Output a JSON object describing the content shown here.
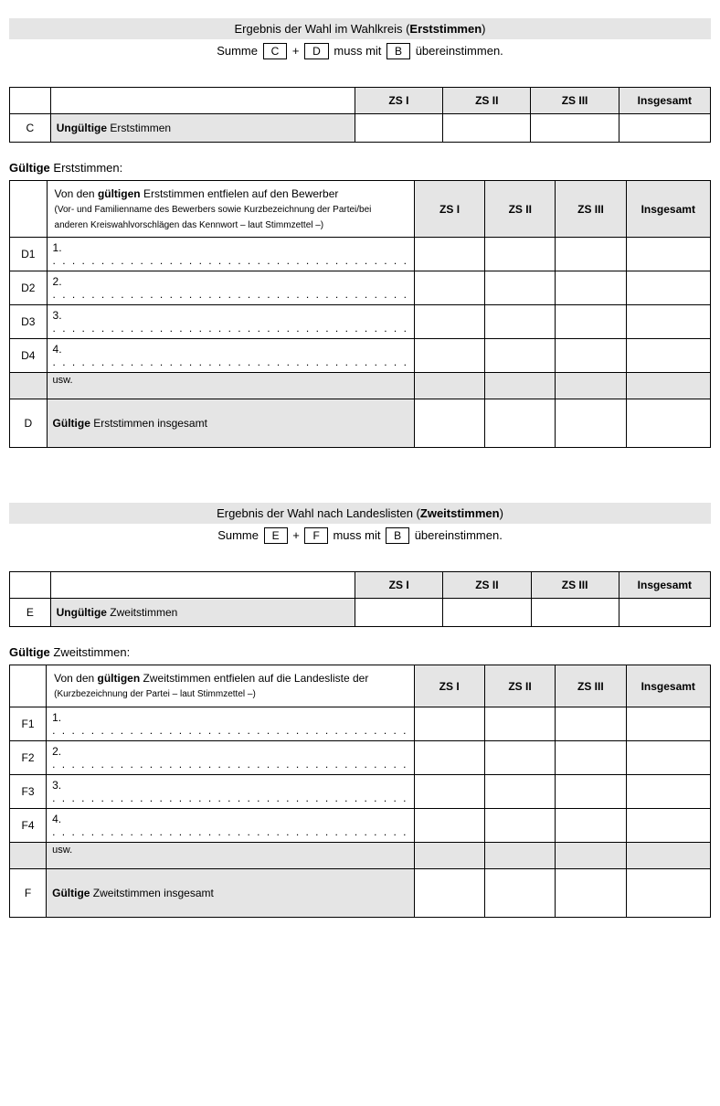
{
  "erststimmen": {
    "header_prefix": "Ergebnis der Wahl im Wahlkreis (",
    "header_bold": "Erststimmen",
    "header_suffix": ")",
    "formula_summe": "Summe",
    "formula_box1": "C",
    "formula_plus": "+",
    "formula_box2": "D",
    "formula_mid": "muss mit",
    "formula_box3": "B",
    "formula_end": "übereinstimmen.",
    "cols": {
      "zs1": "ZS I",
      "zs2": "ZS II",
      "zs3": "ZS III",
      "total": "Insgesamt"
    },
    "invalid": {
      "label": "C",
      "text_bold": "Ungültige",
      "text_rest": " Erststimmen"
    },
    "valid_heading_bold": "Gültige",
    "valid_heading_rest": " Erststimmen:",
    "desc_line1a": "Von den ",
    "desc_line1b": "gültigen",
    "desc_line1c": " Erststimmen entfielen auf den Bewerber",
    "desc_small": "(Vor- und Familienname des Bewerbers sowie Kurzbe­zeichnung der Partei/bei anderen Kreiswahlvorschlägen das Kennwort – laut Stimmzettel –)",
    "rows": [
      {
        "label": "D1",
        "num": "1."
      },
      {
        "label": "D2",
        "num": "2."
      },
      {
        "label": "D3",
        "num": "3."
      },
      {
        "label": "D4",
        "num": "4."
      }
    ],
    "usw": "usw.",
    "total": {
      "label": "D",
      "text_bold": "Gültige",
      "text_rest": " Erststimmen insgesamt"
    }
  },
  "zweitstimmen": {
    "header_prefix": "Ergebnis der Wahl nach Landeslisten (",
    "header_bold": "Zweitstimmen",
    "header_suffix": ")",
    "formula_summe": "Summe",
    "formula_box1": "E",
    "formula_plus": "+",
    "formula_box2": "F",
    "formula_mid": "muss mit",
    "formula_box3": "B",
    "formula_end": "übereinstimmen.",
    "cols": {
      "zs1": "ZS I",
      "zs2": "ZS II",
      "zs3": "ZS III",
      "total": "Insgesamt"
    },
    "invalid": {
      "label": "E",
      "text_bold": "Ungültige",
      "text_rest": " Zweitstimmen"
    },
    "valid_heading_bold": "Gültige",
    "valid_heading_rest": " Zweitstimmen:",
    "desc_line1a": "Von den ",
    "desc_line1b": "gültigen",
    "desc_line1c": " Zweitstimmen entfielen auf die Landesliste der",
    "desc_small": "(Kurzbezeichnung der Partei – laut Stimmzettel –)",
    "rows": [
      {
        "label": "F1",
        "num": "1."
      },
      {
        "label": "F2",
        "num": "2."
      },
      {
        "label": "F3",
        "num": "3."
      },
      {
        "label": "F4",
        "num": "4."
      }
    ],
    "usw": "usw.",
    "total": {
      "label": "F",
      "text_bold": "Gültige",
      "text_rest": " Zweitstimmen insgesamt"
    }
  },
  "dots": ". . . . . . . . . . . . . . . . . . . . . . . . . . . . . . . . . . . . ."
}
